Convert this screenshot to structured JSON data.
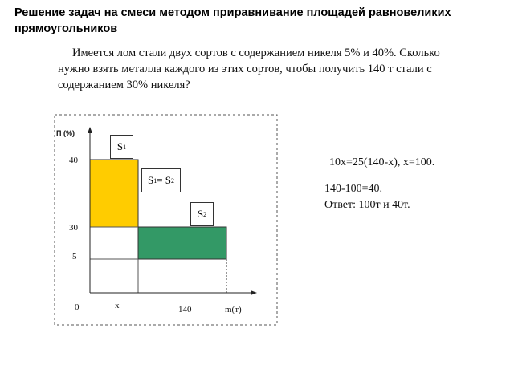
{
  "header": {
    "title": "Решение задач на смеси методом приравнивание площадей равновеликих прямоугольников"
  },
  "problem": {
    "lines": [
      "Имеется лом стали двух сортов с содержанием никеля 5% и 40%. Сколько",
      "нужно взять металла каждого из этих сортов, чтобы получить 140 т стали с",
      "содержанием 30% никеля?"
    ]
  },
  "diagram": {
    "y_axis_label": "П (%)",
    "y_labels": [
      "40",
      "30",
      "5"
    ],
    "x_labels": [
      "0",
      "x",
      "140"
    ],
    "x_axis_label": "m(т)",
    "s1": {
      "letter": "S",
      "sub": "1"
    },
    "equality": {
      "left": "S",
      "left_sub": "1",
      "sign": "=",
      "right": "S",
      "right_sub": "2"
    },
    "s2": {
      "letter": "S",
      "sub": "2"
    }
  },
  "solution": {
    "lines": [
      "10x=25(140-x), x=100.",
      "140-100=40.",
      "Ответ: 100т и 40т."
    ]
  }
}
